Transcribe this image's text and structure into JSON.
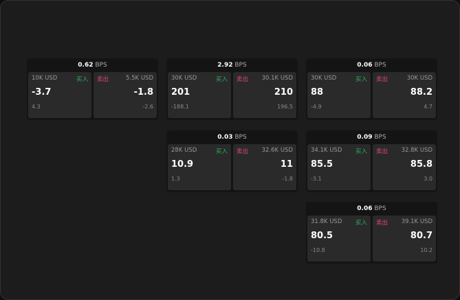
{
  "unit": "BPS",
  "buy_label": "买入",
  "sell_label": "卖出",
  "cards": [
    {
      "bps": "0.62",
      "buy": {
        "size": "10K USD",
        "price": "-3.7",
        "change": "4.3"
      },
      "sell": {
        "size": "5.5K USD",
        "price": "-1.8",
        "change": "-2.6"
      }
    },
    {
      "bps": "2.92",
      "buy": {
        "size": "30K USD",
        "price": "201",
        "change": "-188.1"
      },
      "sell": {
        "size": "30.1K USD",
        "price": "210",
        "change": "196.5"
      }
    },
    {
      "bps": "0.06",
      "buy": {
        "size": "30K USD",
        "price": "88",
        "change": "-4.9"
      },
      "sell": {
        "size": "30K USD",
        "price": "88.2",
        "change": "4.7"
      }
    },
    {
      "bps": "0.03",
      "buy": {
        "size": "28K USD",
        "price": "10.9",
        "change": "1.3"
      },
      "sell": {
        "size": "32.6K USD",
        "price": "11",
        "change": "-1.8"
      }
    },
    {
      "bps": "0.09",
      "buy": {
        "size": "34.1K USD",
        "price": "85.5",
        "change": "-3.1"
      },
      "sell": {
        "size": "32.8K USD",
        "price": "85.8",
        "change": "3.0"
      }
    },
    {
      "bps": "0.06",
      "buy": {
        "size": "31.8K USD",
        "price": "80.5",
        "change": "-10.8"
      },
      "sell": {
        "size": "39.1K USD",
        "price": "80.7",
        "change": "10.2"
      }
    }
  ]
}
